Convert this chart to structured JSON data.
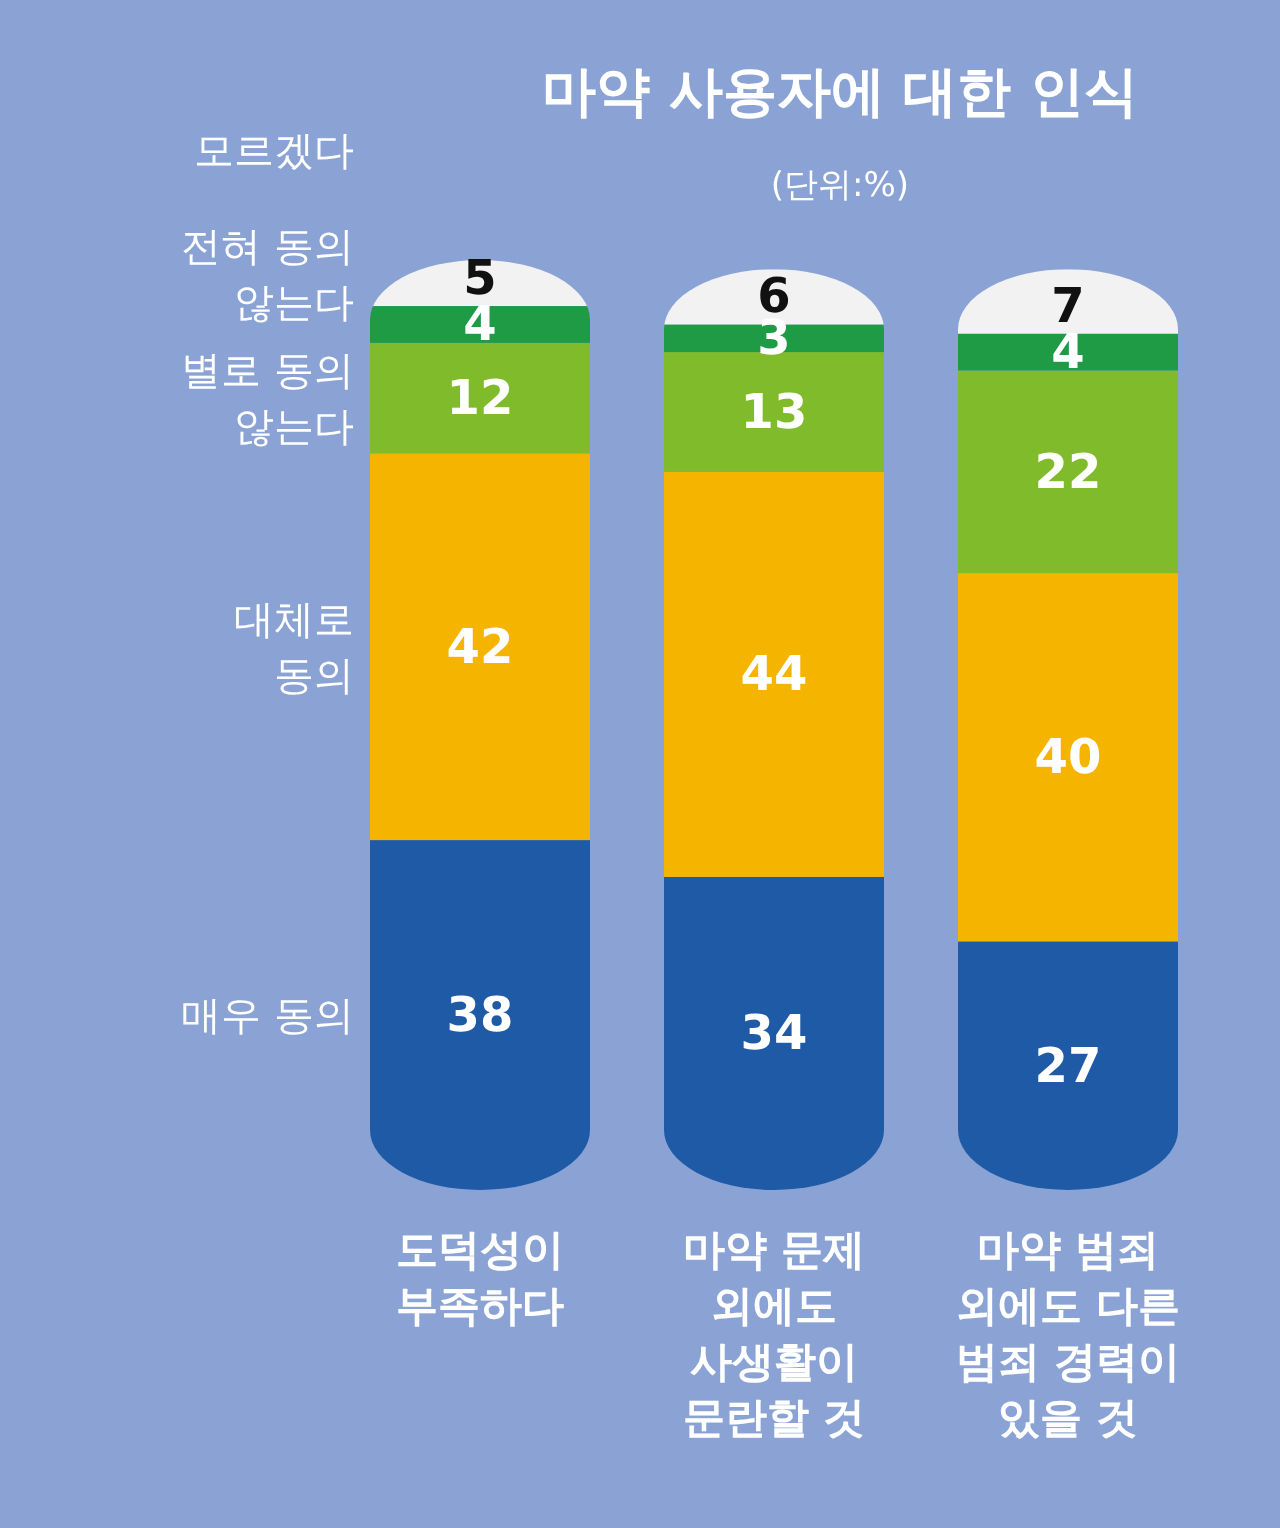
{
  "chart_data": {
    "type": "bar",
    "stacked": true,
    "title": "마약 사용자에 대한 인식",
    "subtitle": "(단위:%)",
    "data_labels": true,
    "legend": "left",
    "categories": [
      "도덕성이 부족하다",
      "마약 문제 외에도 사생활이 문란할 것",
      "마약 범죄 외에도 다른 범죄 경력이 있을 것"
    ],
    "series": [
      {
        "name": "매우 동의",
        "color": "#1f5aa6",
        "values": [
          38,
          34,
          27
        ]
      },
      {
        "name": "대체로 동의",
        "color": "#f4b400",
        "values": [
          42,
          44,
          40
        ]
      },
      {
        "name": "별로 동의 않는다",
        "color": "#80bb2c",
        "values": [
          12,
          13,
          22
        ]
      },
      {
        "name": "전혀 동의 않는다",
        "color": "#1f9a45",
        "values": [
          4,
          3,
          4
        ]
      },
      {
        "name": "모르겠다",
        "color": "#f2f2f2",
        "values": [
          5,
          6,
          7
        ]
      }
    ]
  }
}
